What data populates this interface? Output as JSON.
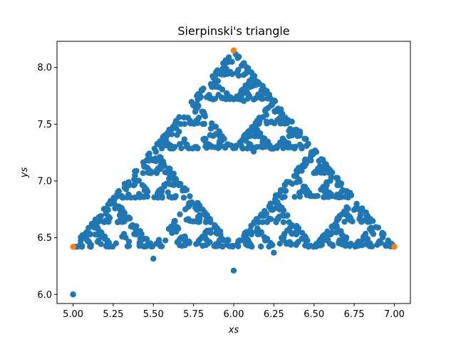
{
  "chart_data": {
    "type": "scatter",
    "title": "Sierpinski's triangle",
    "xlabel": "xs",
    "ylabel": "ys",
    "xlim": [
      4.9,
      7.1
    ],
    "ylim": [
      5.92,
      8.23
    ],
    "xticks": [
      5.0,
      5.25,
      5.5,
      5.75,
      6.0,
      6.25,
      6.5,
      6.75,
      7.0
    ],
    "xtick_labels": [
      "5.00",
      "5.25",
      "5.50",
      "5.75",
      "6.00",
      "6.25",
      "6.50",
      "6.75",
      "7.00"
    ],
    "yticks": [
      6.0,
      6.5,
      7.0,
      7.5,
      8.0
    ],
    "ytick_labels": [
      "6.0",
      "6.5",
      "7.0",
      "7.5",
      "8.0"
    ],
    "grid": false,
    "legend": "none",
    "series": [
      {
        "color": "#1f77b4",
        "generator": "chaos-game",
        "vertices": [
          [
            5.0,
            6.42
          ],
          [
            7.0,
            6.42
          ],
          [
            6.0,
            8.15
          ]
        ],
        "start": [
          5.0,
          6.0
        ],
        "iterations": 1200
      },
      {
        "color": "#ff7f0e",
        "points": [
          [
            5.0,
            6.42
          ],
          [
            7.0,
            6.42
          ],
          [
            6.0,
            8.15
          ]
        ]
      }
    ]
  }
}
